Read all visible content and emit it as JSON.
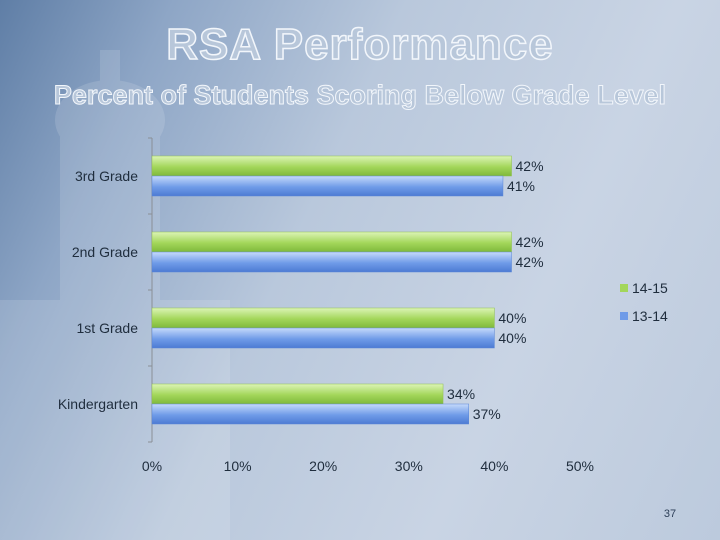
{
  "slide": {
    "title": "RSA Performance",
    "subtitle": "Percent of Students Scoring Below Grade Level",
    "page_number": "37"
  },
  "colors": {
    "series_14_15": "#a3d65a",
    "series_13_14": "#6f9be8",
    "text": "#1f2d3d"
  },
  "chart_data": {
    "type": "bar",
    "orientation": "horizontal",
    "title": "",
    "xlabel": "",
    "ylabel": "",
    "categories": [
      "3rd Grade",
      "2nd Grade",
      "1st Grade",
      "Kindergarten"
    ],
    "series": [
      {
        "name": "14-15",
        "values": [
          42,
          42,
          40,
          34
        ],
        "labels": [
          "42%",
          "42%",
          "40%",
          "34%"
        ]
      },
      {
        "name": "13-14",
        "values": [
          41,
          42,
          40,
          37
        ],
        "labels": [
          "41%",
          "42%",
          "40%",
          "37%"
        ]
      }
    ],
    "xlim": [
      0,
      50
    ],
    "xticks": [
      0,
      10,
      20,
      30,
      40,
      50
    ],
    "xtick_labels": [
      "0%",
      "10%",
      "20%",
      "30%",
      "40%",
      "50%"
    ],
    "grid": false,
    "legend_position": "right"
  }
}
